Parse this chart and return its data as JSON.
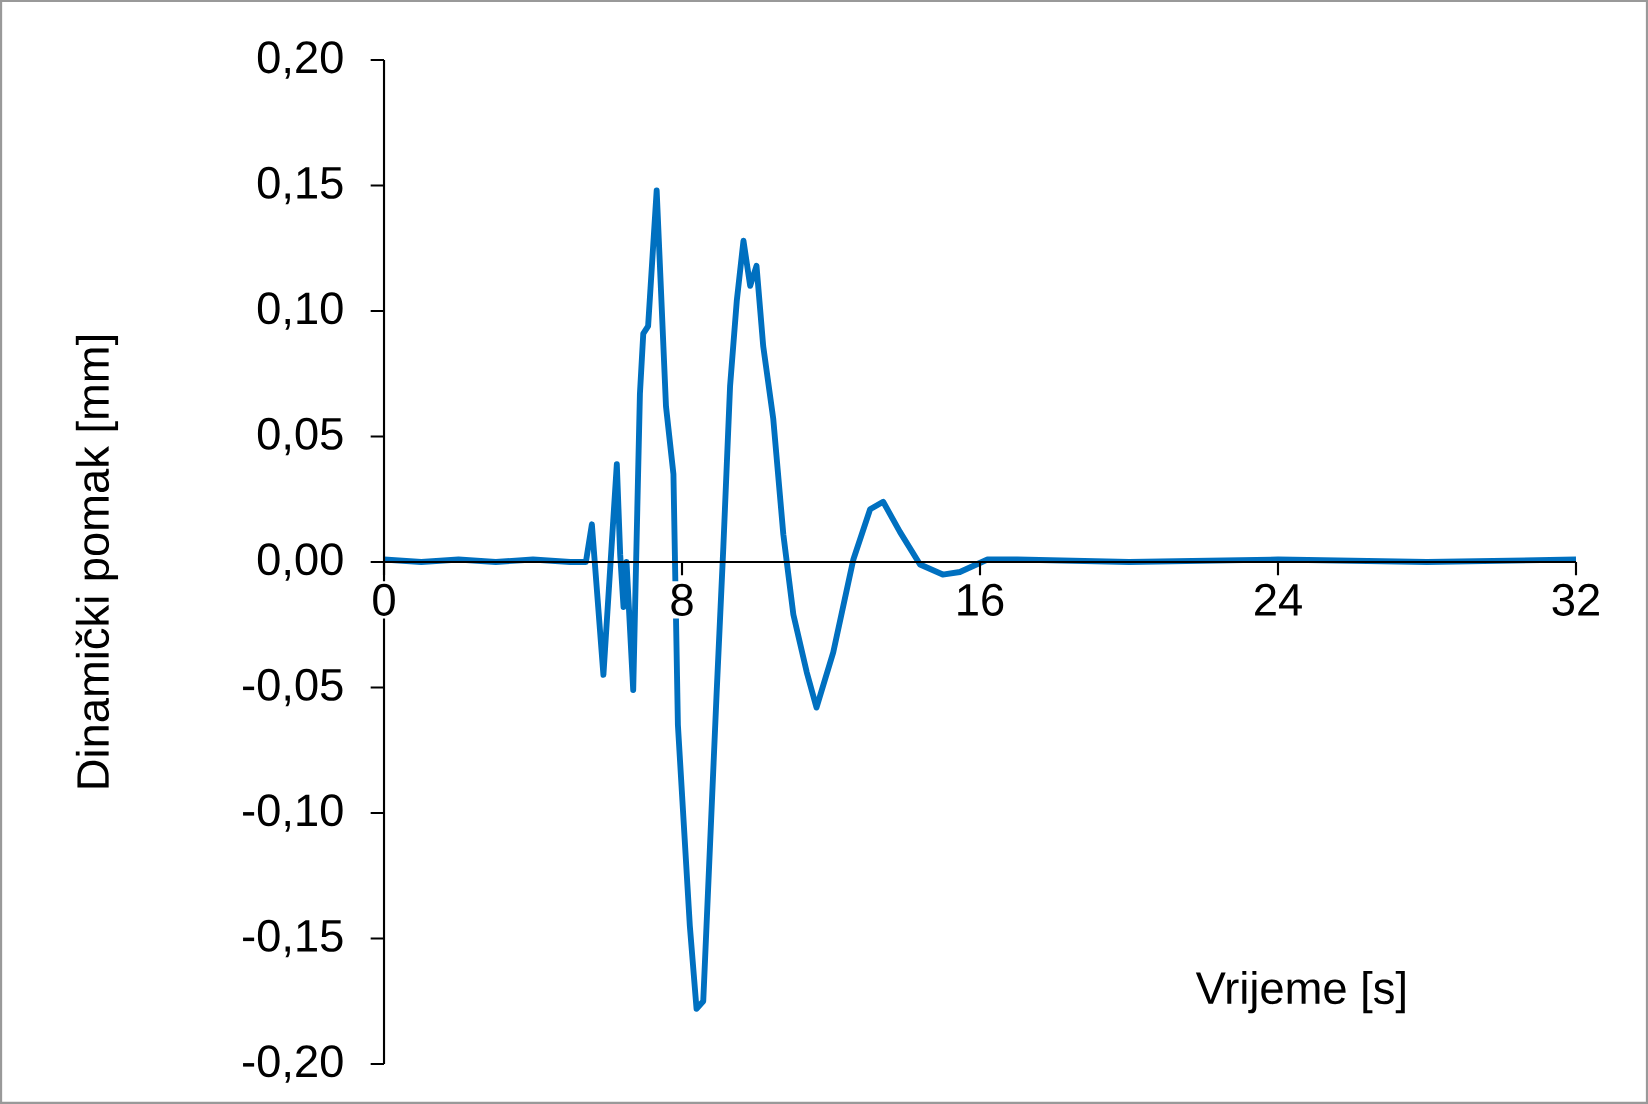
{
  "chart_data": {
    "type": "line",
    "xlabel": "Vrijeme [s]",
    "ylabel": "Dinamički pomak [mm]",
    "xlim": [
      0,
      32
    ],
    "ylim": [
      -0.2,
      0.2
    ],
    "xticks": [
      0,
      8,
      16,
      24,
      32
    ],
    "yticks": [
      {
        "value": -0.2,
        "label": "-0,20"
      },
      {
        "value": -0.15,
        "label": "-0,15"
      },
      {
        "value": -0.1,
        "label": "-0,10"
      },
      {
        "value": -0.05,
        "label": "-0,05"
      },
      {
        "value": 0,
        "label": "0,00"
      },
      {
        "value": 0.05,
        "label": "0,05"
      },
      {
        "value": 0.1,
        "label": "0,10"
      },
      {
        "value": 0.15,
        "label": "0,15"
      },
      {
        "value": 0.2,
        "label": "0,20"
      }
    ],
    "marker": "none",
    "series": [
      {
        "color": "#0070c0",
        "x": [
          0,
          1,
          2,
          3,
          4,
          5,
          5.42,
          5.58,
          5.89,
          6.25,
          6.34,
          6.43,
          6.51,
          6.69,
          6.87,
          6.96,
          7.09,
          7.32,
          7.57,
          7.77,
          7.89,
          8.21,
          8.39,
          8.57,
          8.93,
          9.11,
          9.29,
          9.47,
          9.65,
          9.83,
          10.0,
          10.18,
          10.45,
          10.72,
          10.99,
          11.35,
          11.61,
          12.06,
          12.6,
          13.05,
          13.4,
          13.85,
          14.39,
          15.0,
          15.46,
          16.2,
          17,
          20,
          24,
          28,
          32
        ],
        "values": [
          0.001,
          0.0,
          0.001,
          0.0,
          0.001,
          0.0,
          0.0,
          0.015,
          -0.045,
          0.039,
          0.003,
          -0.018,
          0.0,
          -0.051,
          0.067,
          0.091,
          0.094,
          0.148,
          0.062,
          0.035,
          -0.065,
          -0.145,
          -0.178,
          -0.175,
          -0.052,
          0.006,
          0.07,
          0.104,
          0.128,
          0.11,
          0.118,
          0.086,
          0.057,
          0.011,
          -0.021,
          -0.044,
          -0.058,
          -0.036,
          0.001,
          0.021,
          0.024,
          0.012,
          -0.001,
          -0.005,
          -0.004,
          0.001,
          0.001,
          0.0,
          0.001,
          0.0,
          0.001
        ]
      }
    ]
  }
}
